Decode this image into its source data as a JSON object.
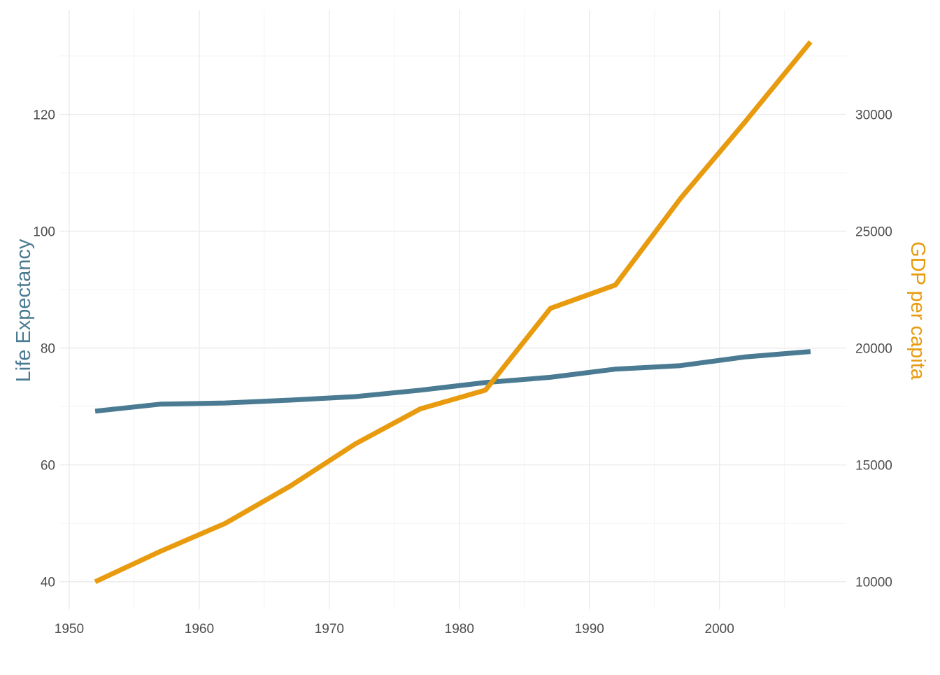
{
  "chart_data": {
    "type": "line",
    "xlabel": "",
    "ylabel": "Life Expectancy",
    "y2label": "GDP per capita",
    "xlim": [
      1949.25,
      2009.75
    ],
    "ylim": [
      35.3,
      137.9
    ],
    "y2lim": [
      8825,
      34475
    ],
    "y2_mapping": "y = y2 / 250",
    "xticks": [
      1950,
      1960,
      1970,
      1980,
      1990,
      2000
    ],
    "xtick_labels": [
      "1950",
      "1960",
      "1970",
      "1980",
      "1990",
      "2000"
    ],
    "yticks": [
      40,
      60,
      80,
      100,
      120
    ],
    "ytick_labels": [
      "40",
      "60",
      "80",
      "100",
      "120"
    ],
    "y2ticks": [
      10000,
      15000,
      20000,
      25000,
      30000
    ],
    "y2tick_labels": [
      "10000",
      "15000",
      "20000",
      "25000",
      "30000"
    ],
    "grid": true,
    "legend": "none",
    "x": [
      1952,
      1957,
      1962,
      1967,
      1972,
      1977,
      1982,
      1987,
      1992,
      1997,
      2002,
      2007
    ],
    "series": [
      {
        "axis": "left",
        "color": "#4a7b93",
        "values": [
          69.2,
          70.4,
          70.6,
          71.1,
          71.7,
          72.8,
          74.1,
          75.0,
          76.4,
          77.0,
          78.5,
          79.4
        ]
      },
      {
        "axis": "right",
        "color": "#e89b0f",
        "values": [
          10000,
          11300,
          12500,
          14100,
          15900,
          17400,
          18200,
          21700,
          22700,
          26400,
          29700,
          33100
        ]
      }
    ],
    "colors": {
      "life_expectancy": "#4a7b93",
      "gdp_per_capita": "#e89b0f",
      "tick_text": "#4d4d4d",
      "grid": "#ebebeb"
    }
  }
}
